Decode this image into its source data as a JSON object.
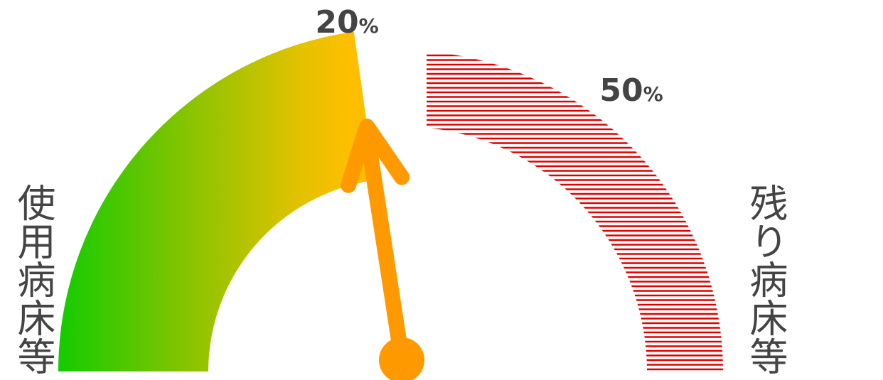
{
  "chart_data": {
    "type": "gauge",
    "scale_min": 0,
    "scale_max": 100,
    "filled_value": 20,
    "remaining_start": 20,
    "remaining_end": 50,
    "needle_value": 20,
    "tick_labels": [
      {
        "value": 20,
        "number": "20",
        "unit": "%"
      },
      {
        "value": 50,
        "number": "50",
        "unit": "%"
      }
    ],
    "left_label": "使用病床等",
    "right_label": "残り病床等",
    "colors": {
      "filled_start": "#11cc00",
      "filled_end": "#ffbf00",
      "remaining_hatch": "#e00000",
      "needle": "#ff9900",
      "text": "#444444"
    }
  }
}
